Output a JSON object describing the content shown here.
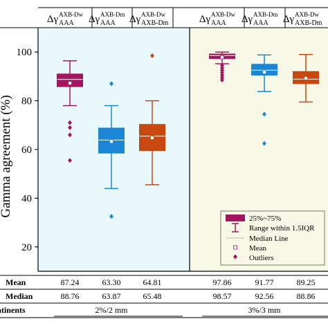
{
  "chart_data": {
    "type": "box",
    "ylabel": "Gamma agreement (%)",
    "yticks": [
      20,
      40,
      60,
      80,
      100
    ],
    "ylim": [
      10,
      110
    ],
    "panels": [
      {
        "background": "#e9f8fb",
        "criterion": "2%/2 mm"
      },
      {
        "background": "#f8f8e6",
        "criterion": "3%/3 mm"
      }
    ],
    "groups": [
      {
        "main": "Δγ",
        "sup": "AXB-Dw",
        "sub": "AAA"
      },
      {
        "main": "Δγ",
        "sup": "AXB-Dm",
        "sub": "AAA"
      },
      {
        "main": "Δγ",
        "sup": "AXB-Dw",
        "sub": "AXB-Dm"
      }
    ],
    "boxes": [
      {
        "panel": 0,
        "group": 0,
        "color": "#a4155f",
        "q1": 85.8,
        "median": 88.76,
        "q3": 91.0,
        "mean": 87.24,
        "whisker_low": 78.0,
        "whisker_high": 96.4,
        "outliers": [
          71.0,
          69.0,
          66.0,
          55.5
        ]
      },
      {
        "panel": 0,
        "group": 1,
        "color": "#1c86d6",
        "q1": 58.5,
        "median": 63.87,
        "q3": 68.8,
        "mean": 63.3,
        "whisker_low": 44.0,
        "whisker_high": 78.0,
        "outliers": [
          87.0,
          32.5
        ]
      },
      {
        "panel": 0,
        "group": 2,
        "color": "#c8480f",
        "q1": 59.5,
        "median": 65.48,
        "q3": 70.3,
        "mean": 64.81,
        "whisker_low": 45.5,
        "whisker_high": 80.0,
        "outliers": [
          98.5
        ]
      },
      {
        "panel": 1,
        "group": 0,
        "color": "#a4155f",
        "q1": 97.3,
        "median": 98.57,
        "q3": 99.2,
        "mean": 97.86,
        "whisker_low": 95.2,
        "whisker_high": 100.0,
        "outliers": [
          94.5,
          93.5,
          92.5,
          91.5,
          90.5,
          89.5,
          88.5
        ]
      },
      {
        "panel": 1,
        "group": 1,
        "color": "#1c86d6",
        "q1": 90.5,
        "median": 92.56,
        "q3": 95.0,
        "mean": 91.77,
        "whisker_low": 83.8,
        "whisker_high": 98.8,
        "outliers": [
          74.5,
          62.5
        ]
      },
      {
        "panel": 1,
        "group": 2,
        "color": "#c8480f",
        "q1": 87.0,
        "median": 88.86,
        "q3": 92.0,
        "mean": 89.25,
        "whisker_low": 79.5,
        "whisker_high": 99.0,
        "outliers": []
      }
    ],
    "legend": {
      "position": "bottom-right of right panel",
      "entries": [
        "25%~75%",
        "Range within 1.5IQR",
        "Median Line",
        "Mean",
        "Outliers"
      ]
    },
    "table": {
      "rows": [
        {
          "label": "Mean",
          "values": [
            "87.24",
            "63.30",
            "64.81",
            "97.86",
            "91.77",
            "89.25"
          ]
        },
        {
          "label": "Median",
          "values": [
            "88.76",
            "63.87",
            "65.48",
            "98.57",
            "92.56",
            "88.86"
          ]
        }
      ],
      "criteria_label": "atinents",
      "criteria": [
        "2%/2 mm",
        "3%/3 mm"
      ]
    }
  }
}
